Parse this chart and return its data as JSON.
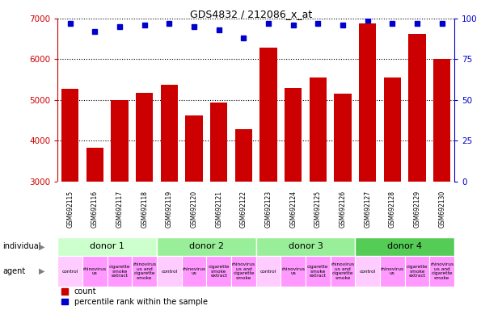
{
  "title": "GDS4832 / 212086_x_at",
  "samples": [
    "GSM692115",
    "GSM692116",
    "GSM692117",
    "GSM692118",
    "GSM692119",
    "GSM692120",
    "GSM692121",
    "GSM692122",
    "GSM692123",
    "GSM692124",
    "GSM692125",
    "GSM692126",
    "GSM692127",
    "GSM692128",
    "GSM692129",
    "GSM692130"
  ],
  "counts": [
    5280,
    3820,
    5000,
    5180,
    5380,
    4620,
    4940,
    4280,
    6280,
    5290,
    5550,
    5150,
    6880,
    5550,
    6620,
    6000
  ],
  "percentile_ranks": [
    97,
    92,
    95,
    96,
    97,
    95,
    93,
    88,
    97,
    96,
    97,
    96,
    99,
    97,
    97,
    97
  ],
  "bar_color": "#cc0000",
  "percentile_color": "#0000cc",
  "ylim_left": [
    3000,
    7000
  ],
  "ylim_right": [
    0,
    100
  ],
  "yticks_left": [
    3000,
    4000,
    5000,
    6000,
    7000
  ],
  "yticks_right": [
    0,
    25,
    50,
    75,
    100
  ],
  "donors": [
    {
      "label": "donor 1",
      "start": 0,
      "end": 4,
      "color": "#ccffcc"
    },
    {
      "label": "donor 2",
      "start": 4,
      "end": 8,
      "color": "#99ee99"
    },
    {
      "label": "donor 3",
      "start": 8,
      "end": 12,
      "color": "#99ee99"
    },
    {
      "label": "donor 4",
      "start": 12,
      "end": 16,
      "color": "#55cc55"
    }
  ],
  "agents": [
    "control",
    "rhinovirus\nus",
    "cigarette\nsmoke\nextract",
    "rhinovirus\nus and\ncigarette\nsmoke",
    "control",
    "rhinovirus\nus",
    "cigarette\nsmoke\nextract",
    "rhinovirus\nus and\ncigarette\nsmoke",
    "control",
    "rhinovirus\nus",
    "cigarette\nsmoke\nextract",
    "rhinovirus\nus and\ncigarette\nsmoke",
    "control",
    "rhinovirus\nus",
    "cigarette\nsmoke\nextract",
    "rhinovirus\nus and\ncigarette\nsmoke"
  ],
  "agent_colors": [
    "#ffccff",
    "#ff99ff",
    "#ff99ff",
    "#ff99ff",
    "#ffccff",
    "#ff99ff",
    "#ff99ff",
    "#ff99ff",
    "#ffccff",
    "#ff99ff",
    "#ff99ff",
    "#ff99ff",
    "#ffccff",
    "#ff99ff",
    "#ff99ff",
    "#ff99ff"
  ],
  "tick_label_color_left": "#cc0000",
  "tick_label_color_right": "#0000cc",
  "sample_label_bg": "#cccccc",
  "fig_width": 6.21,
  "fig_height": 3.84,
  "dpi": 100
}
